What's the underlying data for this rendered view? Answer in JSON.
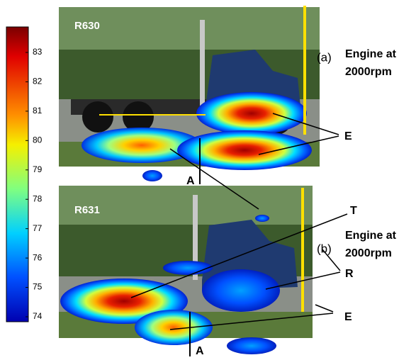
{
  "colorbar": {
    "ticks": [
      "83",
      "82",
      "81",
      "80",
      "79",
      "78",
      "77",
      "76",
      "75",
      "74"
    ]
  },
  "panels": [
    {
      "label": "R630",
      "tag": "(a)",
      "caption": [
        "Engine at",
        "2000rpm"
      ],
      "markers": [
        "E",
        "A"
      ]
    },
    {
      "label": "R631",
      "tag": "(b)",
      "caption": [
        "Engine at",
        "2000rpm"
      ],
      "markers": [
        "T",
        "R",
        "E",
        "A"
      ]
    }
  ]
}
